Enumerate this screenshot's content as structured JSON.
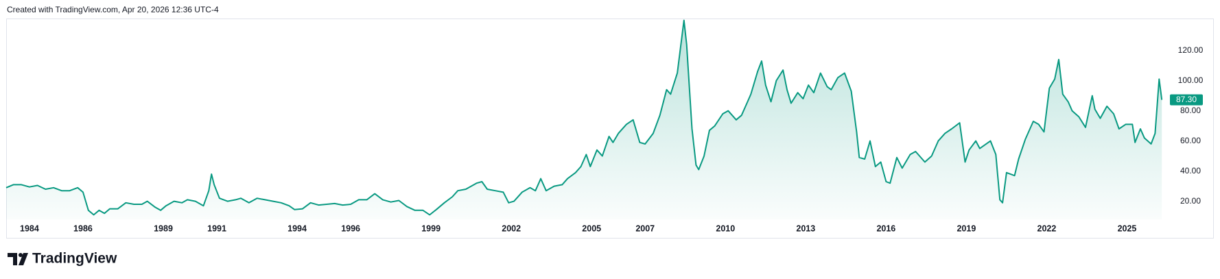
{
  "header": "Created with TradingView.com, Apr 20, 2026 12:36 UTC-4",
  "brand": "TradingView",
  "chart_data": {
    "type": "area",
    "x": [
      1983.13,
      1983.4,
      1983.7,
      1984.0,
      1984.3,
      1984.6,
      1984.9,
      1985.2,
      1985.5,
      1985.8,
      1986.0,
      1986.2,
      1986.4,
      1986.6,
      1986.8,
      1987.0,
      1987.3,
      1987.6,
      1987.9,
      1988.2,
      1988.4,
      1988.7,
      1988.9,
      1989.1,
      1989.4,
      1989.7,
      1989.9,
      1990.2,
      1990.5,
      1990.7,
      1990.8,
      1990.9,
      1991.1,
      1991.4,
      1991.7,
      1991.9,
      1992.2,
      1992.5,
      1992.8,
      1993.1,
      1993.4,
      1993.7,
      1993.9,
      1994.2,
      1994.5,
      1994.8,
      1995.1,
      1995.4,
      1995.7,
      1996.0,
      1996.3,
      1996.6,
      1996.9,
      1997.2,
      1997.5,
      1997.8,
      1998.1,
      1998.4,
      1998.7,
      1998.95,
      1999.2,
      1999.5,
      1999.8,
      2000.0,
      2000.3,
      2000.5,
      2000.7,
      2000.9,
      2001.1,
      2001.4,
      2001.7,
      2001.9,
      2002.1,
      2002.4,
      2002.7,
      2002.9,
      2003.1,
      2003.3,
      2003.6,
      2003.9,
      2004.1,
      2004.4,
      2004.6,
      2004.8,
      2004.95,
      2005.2,
      2005.4,
      2005.65,
      2005.8,
      2006.0,
      2006.3,
      2006.55,
      2006.8,
      2007.0,
      2007.3,
      2007.55,
      2007.8,
      2007.95,
      2008.2,
      2008.45,
      2008.55,
      2008.75,
      2008.9,
      2009.0,
      2009.2,
      2009.4,
      2009.6,
      2009.9,
      2010.1,
      2010.4,
      2010.6,
      2010.8,
      2010.95,
      2011.2,
      2011.35,
      2011.5,
      2011.7,
      2011.9,
      2012.15,
      2012.3,
      2012.45,
      2012.7,
      2012.9,
      2013.1,
      2013.3,
      2013.55,
      2013.8,
      2013.95,
      2014.2,
      2014.45,
      2014.7,
      2014.9,
      2015.0,
      2015.2,
      2015.4,
      2015.6,
      2015.8,
      2016.0,
      2016.15,
      2016.4,
      2016.6,
      2016.9,
      2017.1,
      2017.45,
      2017.7,
      2017.95,
      2018.2,
      2018.45,
      2018.75,
      2018.95,
      2019.1,
      2019.35,
      2019.5,
      2019.9,
      2020.1,
      2020.25,
      2020.35,
      2020.5,
      2020.8,
      2020.95,
      2021.2,
      2021.5,
      2021.7,
      2021.9,
      2022.1,
      2022.3,
      2022.45,
      2022.6,
      2022.8,
      2022.95,
      2023.2,
      2023.45,
      2023.7,
      2023.8,
      2024.0,
      2024.25,
      2024.5,
      2024.7,
      2024.95,
      2025.2,
      2025.3,
      2025.5,
      2025.65,
      2025.9,
      2026.05,
      2026.2,
      2026.3
    ],
    "series": [
      {
        "color": "#089981",
        "values": [
          29,
          31,
          31,
          29.5,
          30.5,
          28,
          29,
          27,
          27,
          29,
          26,
          14,
          11,
          14,
          12,
          15,
          15,
          19,
          18,
          18,
          20,
          16,
          14,
          17,
          20,
          19,
          21,
          20,
          17,
          27,
          38,
          31,
          22,
          20,
          21,
          22,
          19,
          22,
          21,
          20,
          19,
          17,
          14.5,
          15,
          19,
          17.5,
          18,
          18.5,
          17.5,
          18,
          21,
          21,
          25,
          21,
          19.5,
          20.5,
          16.5,
          14,
          14,
          11,
          14.5,
          19,
          23,
          27,
          28,
          30,
          32,
          33,
          28,
          27,
          26,
          19,
          20,
          26,
          29,
          27,
          35,
          27,
          30,
          31,
          35,
          39,
          43,
          51,
          43,
          54,
          50,
          63,
          59,
          65,
          71,
          74,
          59,
          58,
          65,
          77,
          94,
          91,
          105,
          140,
          124,
          68,
          44,
          41,
          50,
          67,
          70,
          78,
          80,
          74,
          77,
          85,
          91,
          106,
          113,
          97,
          86,
          100,
          107,
          94,
          85,
          92,
          88,
          97,
          92,
          105,
          96,
          94,
          102,
          105,
          93,
          66,
          49,
          48,
          60,
          43,
          46,
          33,
          32,
          49,
          42,
          51,
          53,
          46,
          50,
          60,
          65,
          68,
          72,
          46,
          54,
          60,
          55,
          60,
          51,
          21,
          19,
          39,
          37,
          48,
          61,
          73,
          71,
          66,
          95,
          101,
          114,
          91,
          86,
          80,
          76,
          69,
          90,
          81,
          75,
          83,
          78,
          68,
          71,
          71,
          59,
          68,
          62,
          58,
          65,
          101,
          87.3
        ]
      }
    ],
    "last_price": {
      "value": 87.3,
      "label": "87.30"
    },
    "xlim": [
      1983.13,
      2026.5
    ],
    "xticks": [
      1984,
      1986,
      1989,
      1991,
      1994,
      1996,
      1999,
      2002,
      2005,
      2007,
      2010,
      2013,
      2016,
      2019,
      2022,
      2025
    ],
    "ylim": [
      8,
      141.2
    ],
    "yticks": [
      {
        "value": 20,
        "label": "20.00"
      },
      {
        "value": 40,
        "label": "40.00"
      },
      {
        "value": 60,
        "label": "60.00"
      },
      {
        "value": 80,
        "label": "80.00"
      },
      {
        "value": 100,
        "label": "100.00"
      },
      {
        "value": 120,
        "label": "120.00"
      }
    ],
    "grid": false
  }
}
